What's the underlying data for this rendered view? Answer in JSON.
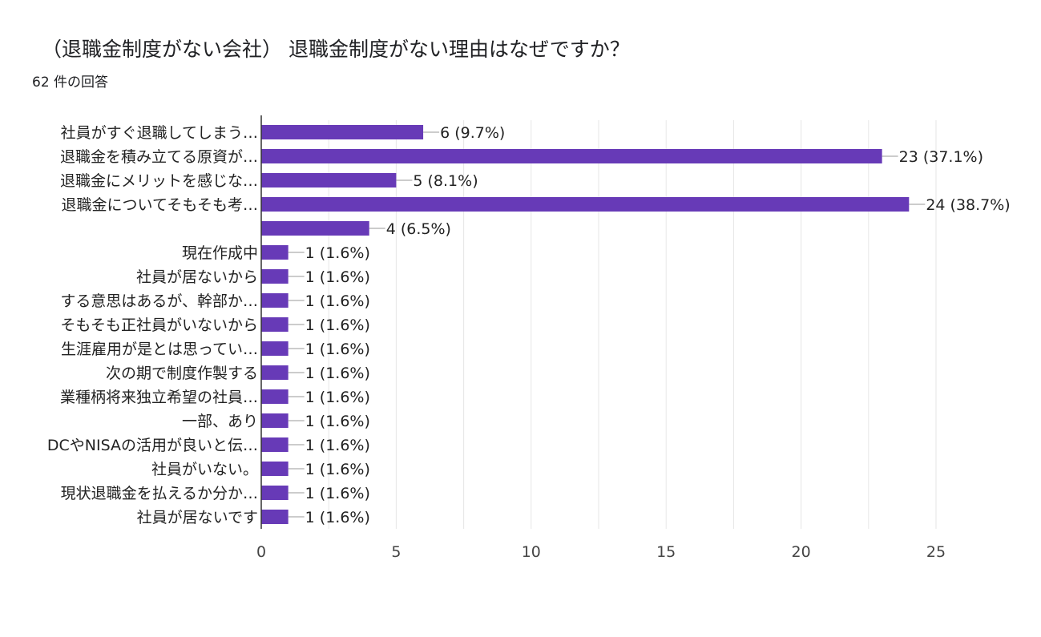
{
  "header": {
    "title": "（退職金制度がない会社） 退職金制度がない理由はなぜですか？",
    "response_count": "62 件の回答"
  },
  "colors": {
    "bar": "#673ab7",
    "grid": "#e6e6e6",
    "axis": "#333333",
    "text": "#222222",
    "tick_text": "#444444"
  },
  "chart_data": {
    "type": "bar",
    "orientation": "horizontal",
    "title": "（退職金制度がない会社） 退職金制度がない理由はなぜですか？",
    "xlabel": "",
    "ylabel": "",
    "xlim": [
      0,
      25
    ],
    "xticks": [
      0,
      5,
      10,
      15,
      20,
      25
    ],
    "grid": true,
    "categories": [
      "社員がすぐ退職してしまう…",
      "退職金を積み立てる原資が…",
      "退職金にメリットを感じな…",
      "退職金についてそもそも考…",
      "",
      "現在作成中",
      "社員が居ないから",
      "する意思はあるが、幹部か…",
      "そもそも正社員がいないから",
      "生涯雇用が是とは思ってい…",
      "次の期で制度作製する",
      "業種柄将来独立希望の社員…",
      "一部、あり",
      "DCやNISAの活用が良いと伝…",
      "社員がいない。",
      "現状退職金を払えるか分か…",
      "社員が居ないです"
    ],
    "values": [
      6,
      23,
      5,
      24,
      4,
      1,
      1,
      1,
      1,
      1,
      1,
      1,
      1,
      1,
      1,
      1,
      1
    ],
    "data_labels": [
      "6 (9.7%)",
      "23 (37.1%)",
      "5 (8.1%)",
      "24 (38.7%)",
      "4 (6.5%)",
      "1 (1.6%)",
      "1 (1.6%)",
      "1 (1.6%)",
      "1 (1.6%)",
      "1 (1.6%)",
      "1 (1.6%)",
      "1 (1.6%)",
      "1 (1.6%)",
      "1 (1.6%)",
      "1 (1.6%)",
      "1 (1.6%)",
      "1 (1.6%)"
    ]
  }
}
